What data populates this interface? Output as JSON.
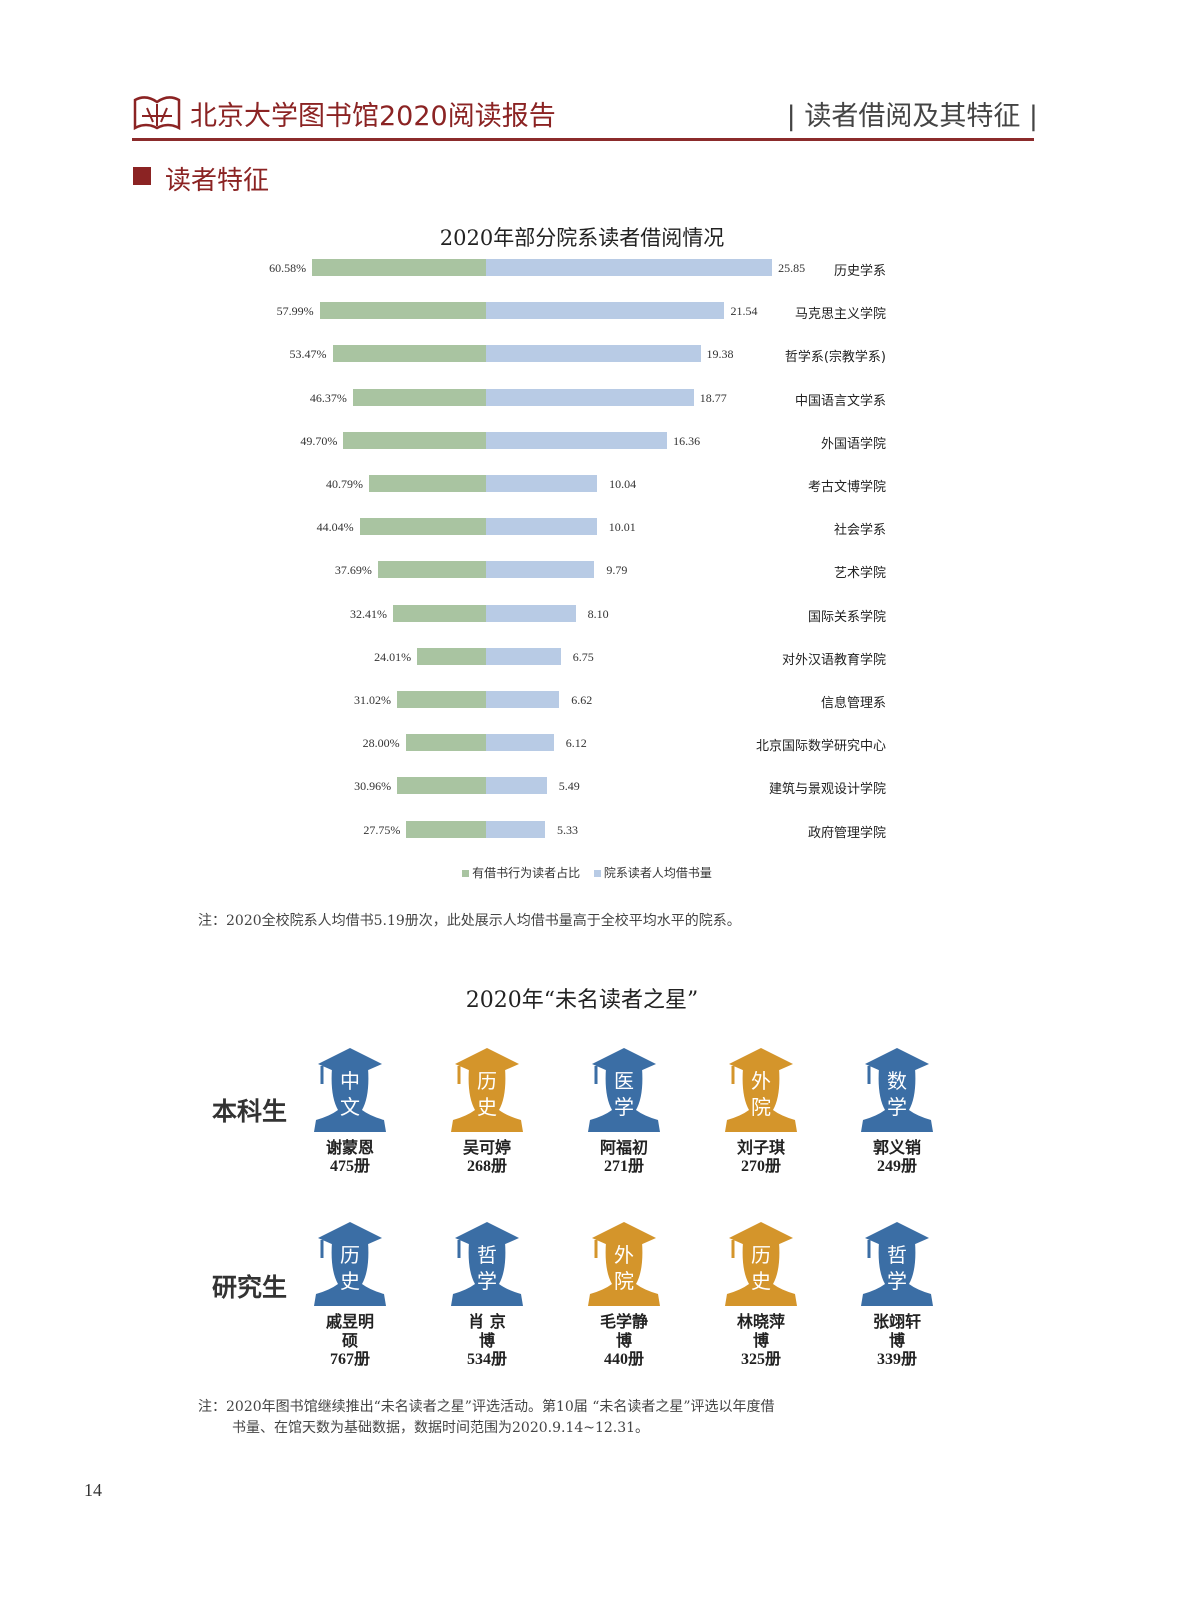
{
  "header": {
    "title": "北京大学图书馆2020阅读报告",
    "section": "| 读者借阅及其特征 |"
  },
  "section_title": "读者特征",
  "chart_data": {
    "type": "bar",
    "title": "2020年部分院系读者借阅情况",
    "categories": [
      "历史学系",
      "马克思主义学院",
      "哲学系(宗教学系)",
      "中国语言文学系",
      "外国语学院",
      "考古文博学院",
      "社会学系",
      "艺术学院",
      "国际关系学院",
      "对外汉语教育学院",
      "信息管理系",
      "北京国际数学研究中心",
      "建筑与景观设计学院",
      "政府管理学院"
    ],
    "series": [
      {
        "name": "有借书行为读者占比",
        "color": "#a9c4a1",
        "values": [
          60.58,
          57.99,
          53.47,
          46.37,
          49.7,
          40.79,
          44.04,
          37.69,
          32.41,
          24.01,
          31.02,
          28.0,
          30.96,
          27.75
        ],
        "labels": [
          "60.58%",
          "57.99%",
          "53.47%",
          "46.37%",
          "49.70%",
          "40.79%",
          "44.04%",
          "37.69%",
          "32.41%",
          "24.01%",
          "31.02%",
          "28.00%",
          "30.96%",
          "27.75%"
        ]
      },
      {
        "name": "院系读者人均借书量",
        "color": "#b8cbe5",
        "values": [
          25.85,
          21.54,
          19.38,
          18.77,
          16.36,
          10.04,
          10.01,
          9.79,
          8.1,
          6.75,
          6.62,
          6.12,
          5.49,
          5.33
        ],
        "labels": [
          "25.85",
          "21.54",
          "19.38",
          "18.77",
          "16.36",
          "10.04",
          "10.01",
          "9.79",
          "8.10",
          "6.75",
          "6.62",
          "6.12",
          "5.49",
          "5.33"
        ]
      }
    ],
    "legend": "bottom"
  },
  "note1": "注：2020全校院系人均借书5.19册次，此处展示人均借书量高于全校平均水平的院系。",
  "stars": {
    "title": "2020年“未名读者之星”",
    "rows": [
      {
        "label": "本科生",
        "items": [
          {
            "dept": [
              "中",
              "文"
            ],
            "name": "谢蒙恩",
            "count": "475册",
            "color": "#3b6ea5"
          },
          {
            "dept": [
              "历",
              "史"
            ],
            "name": "吴可婷",
            "count": "268册",
            "color": "#d4952b"
          },
          {
            "dept": [
              "医",
              "学"
            ],
            "name": "阿福初",
            "count": "271册",
            "color": "#3b6ea5"
          },
          {
            "dept": [
              "外",
              "院"
            ],
            "name": "刘子琪",
            "count": "270册",
            "color": "#d4952b"
          },
          {
            "dept": [
              "数",
              "学"
            ],
            "name": "郭义销",
            "count": "249册",
            "color": "#3b6ea5"
          }
        ]
      },
      {
        "label": "研究生",
        "items": [
          {
            "dept": [
              "历",
              "史"
            ],
            "name": "戚昱明",
            "degree": "硕",
            "count": "767册",
            "color": "#3b6ea5"
          },
          {
            "dept": [
              "哲",
              "学"
            ],
            "name": "肖 京",
            "degree": "博",
            "count": "534册",
            "color": "#3b6ea5"
          },
          {
            "dept": [
              "外",
              "院"
            ],
            "name": "毛学静",
            "degree": "博",
            "count": "440册",
            "color": "#d4952b"
          },
          {
            "dept": [
              "历",
              "史"
            ],
            "name": "林晓萍",
            "degree": "博",
            "count": "325册",
            "color": "#d4952b"
          },
          {
            "dept": [
              "哲",
              "学"
            ],
            "name": "张翊轩",
            "degree": "博",
            "count": "339册",
            "color": "#3b6ea5"
          }
        ]
      }
    ]
  },
  "note2": {
    "line1": "注：2020年图书馆继续推出“未名读者之星”评选活动。第10届 “未名读者之星”评选以年度借",
    "line2": "书量、在馆天数为基础数据，数据时间范围为2020.9.14~12.31。"
  },
  "page_number": "14"
}
